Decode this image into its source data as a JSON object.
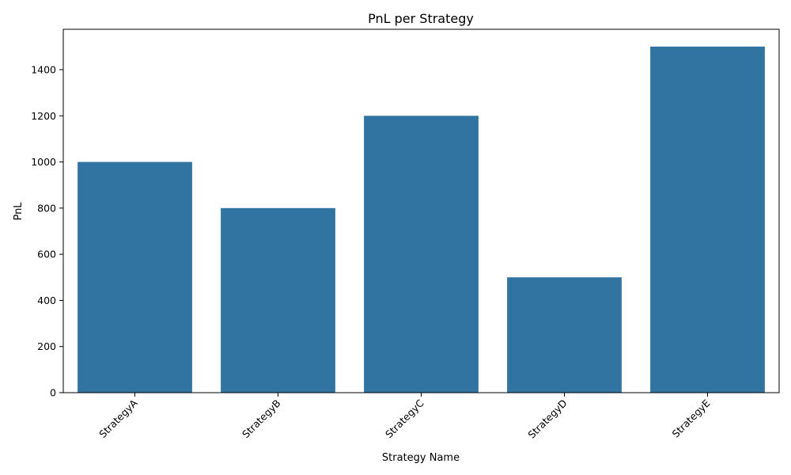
{
  "chart_data": {
    "type": "bar",
    "title": "PnL per Strategy",
    "xlabel": "Strategy Name",
    "ylabel": "PnL",
    "categories": [
      "StrategyA",
      "StrategyB",
      "StrategyC",
      "StrategyD",
      "StrategyE"
    ],
    "values": [
      1000,
      800,
      1200,
      500,
      1500
    ],
    "ylim": [
      0,
      1575
    ],
    "yticks": [
      0,
      200,
      400,
      600,
      800,
      1000,
      1200,
      1400
    ],
    "grid": false,
    "legend": "none",
    "colors": {
      "bar": "#3274a1"
    }
  }
}
